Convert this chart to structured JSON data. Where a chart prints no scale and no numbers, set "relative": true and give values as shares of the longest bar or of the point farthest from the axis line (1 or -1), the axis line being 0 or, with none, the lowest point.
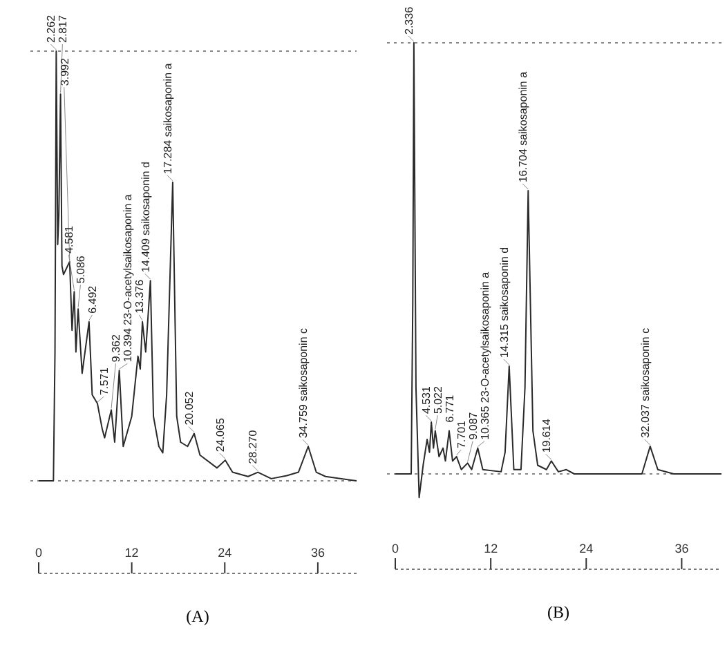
{
  "chart_data": [
    {
      "type": "line",
      "relative": true,
      "xlim": [
        0,
        41
      ],
      "xticks": [
        0,
        12,
        24,
        36
      ],
      "xlabel": "(A)",
      "tick_labels": "x",
      "series": [
        {
          "color": "#2a2a2a",
          "x": [
            0,
            1.9,
            2.1,
            2.262,
            2.45,
            2.6,
            2.817,
            3.0,
            3.2,
            3.992,
            4.3,
            4.581,
            4.8,
            5.086,
            5.6,
            6.492,
            6.9,
            7.571,
            8.2,
            8.5,
            9.362,
            9.8,
            10.394,
            10.9,
            12.0,
            12.8,
            13.1,
            13.376,
            13.8,
            14.409,
            14.8,
            15.5,
            16.0,
            16.5,
            17.284,
            17.8,
            18.3,
            19.2,
            20.052,
            20.8,
            23.0,
            24.065,
            25.0,
            27.0,
            28.27,
            30.0,
            32.0,
            33.5,
            34.759,
            35.8,
            37.0,
            41.0
          ],
          "values": [
            0,
            0,
            0.3,
            1.0,
            0.55,
            0.62,
            0.9,
            0.5,
            0.48,
            0.51,
            0.35,
            0.44,
            0.3,
            0.4,
            0.25,
            0.37,
            0.2,
            0.18,
            0.12,
            0.1,
            0.165,
            0.09,
            0.257,
            0.08,
            0.15,
            0.29,
            0.26,
            0.37,
            0.3,
            0.466,
            0.15,
            0.08,
            0.065,
            0.2,
            0.695,
            0.15,
            0.09,
            0.08,
            0.11,
            0.06,
            0.03,
            0.048,
            0.02,
            0.01,
            0.02,
            0.005,
            0.012,
            0.02,
            0.08,
            0.02,
            0.01,
            0
          ]
        }
      ],
      "ref_lines": [
        {
          "axis": "y",
          "value": 0,
          "line_style": "dotted"
        },
        {
          "axis": "y",
          "value": 1,
          "line_style": "dotted"
        }
      ],
      "annotations": [
        {
          "text": "2.262",
          "x": 2.262,
          "y": 1.0
        },
        {
          "text": "2.817",
          "x": 2.817,
          "y": 0.9
        },
        {
          "text": "3.992",
          "x": 3.992,
          "y": 0.51
        },
        {
          "text": "4.581",
          "x": 4.581,
          "y": 0.44
        },
        {
          "text": "5.086",
          "x": 5.086,
          "y": 0.4
        },
        {
          "text": "6.492",
          "x": 6.492,
          "y": 0.37
        },
        {
          "text": "7.571",
          "x": 7.571,
          "y": 0.18
        },
        {
          "text": "9.362",
          "x": 9.362,
          "y": 0.165
        },
        {
          "text": "10.394 23-O-acetylsaikosaponin a",
          "x": 10.394,
          "y": 0.257
        },
        {
          "text": "13.376",
          "x": 13.376,
          "y": 0.37
        },
        {
          "text": "14.409 saikosaponin d",
          "x": 14.409,
          "y": 0.466
        },
        {
          "text": "17.284 saikosaponin a",
          "x": 17.284,
          "y": 0.695
        },
        {
          "text": "20.052",
          "x": 20.052,
          "y": 0.11
        },
        {
          "text": "24.065",
          "x": 24.065,
          "y": 0.048
        },
        {
          "text": "28.270",
          "x": 28.27,
          "y": 0.02
        },
        {
          "text": "34.759 saikosaponin c",
          "x": 34.759,
          "y": 0.08
        }
      ]
    },
    {
      "type": "line",
      "relative": true,
      "xlim": [
        0,
        41
      ],
      "xticks": [
        0,
        12,
        24,
        36
      ],
      "xlabel": "(B)",
      "tick_labels": "x",
      "series": [
        {
          "color": "#2a2a2a",
          "x": [
            0,
            2.0,
            2.2,
            2.336,
            2.6,
            3.0,
            3.5,
            4.0,
            4.3,
            4.531,
            4.8,
            5.022,
            5.5,
            6.0,
            6.3,
            6.771,
            7.2,
            7.701,
            8.3,
            9.087,
            9.6,
            10.365,
            11.0,
            13.3,
            13.8,
            14.315,
            14.9,
            15.8,
            16.3,
            16.704,
            17.3,
            17.9,
            19.0,
            19.614,
            20.5,
            21.5,
            22.5,
            31.0,
            32.037,
            33.0,
            35.0,
            41.0
          ],
          "values": [
            0,
            0,
            0.4,
            1.0,
            0.2,
            -0.055,
            0.02,
            0.08,
            0.05,
            0.12,
            0.06,
            0.1,
            0.04,
            0.06,
            0.03,
            0.1,
            0.03,
            0.04,
            0.01,
            0.025,
            0.01,
            0.06,
            0.01,
            0.005,
            0.05,
            0.25,
            0.01,
            0.01,
            0.2,
            0.657,
            0.1,
            0.02,
            0.01,
            0.03,
            0.005,
            0.01,
            0,
            0,
            0.064,
            0.01,
            0,
            0
          ]
        }
      ],
      "ref_lines": [
        {
          "axis": "y",
          "value": 0,
          "line_style": "dotted"
        },
        {
          "axis": "y",
          "value": 1,
          "line_style": "dotted"
        }
      ],
      "annotations": [
        {
          "text": "2.336",
          "x": 2.336,
          "y": 1.0
        },
        {
          "text": "4.531",
          "x": 4.531,
          "y": 0.12
        },
        {
          "text": "5.022",
          "x": 5.022,
          "y": 0.1
        },
        {
          "text": "6.771",
          "x": 6.771,
          "y": 0.1
        },
        {
          "text": "7.701",
          "x": 7.701,
          "y": 0.04
        },
        {
          "text": "9.087",
          "x": 9.087,
          "y": 0.025
        },
        {
          "text": "10.365 23-O-acetylsaikosaponin a",
          "x": 10.365,
          "y": 0.06
        },
        {
          "text": "14.315 saikosaponin d",
          "x": 14.315,
          "y": 0.25
        },
        {
          "text": "16.704 saikosaponin a",
          "x": 16.704,
          "y": 0.657
        },
        {
          "text": "19.614",
          "x": 19.614,
          "y": 0.03
        },
        {
          "text": "32.037 saikosaponin c",
          "x": 32.037,
          "y": 0.064
        }
      ]
    }
  ]
}
